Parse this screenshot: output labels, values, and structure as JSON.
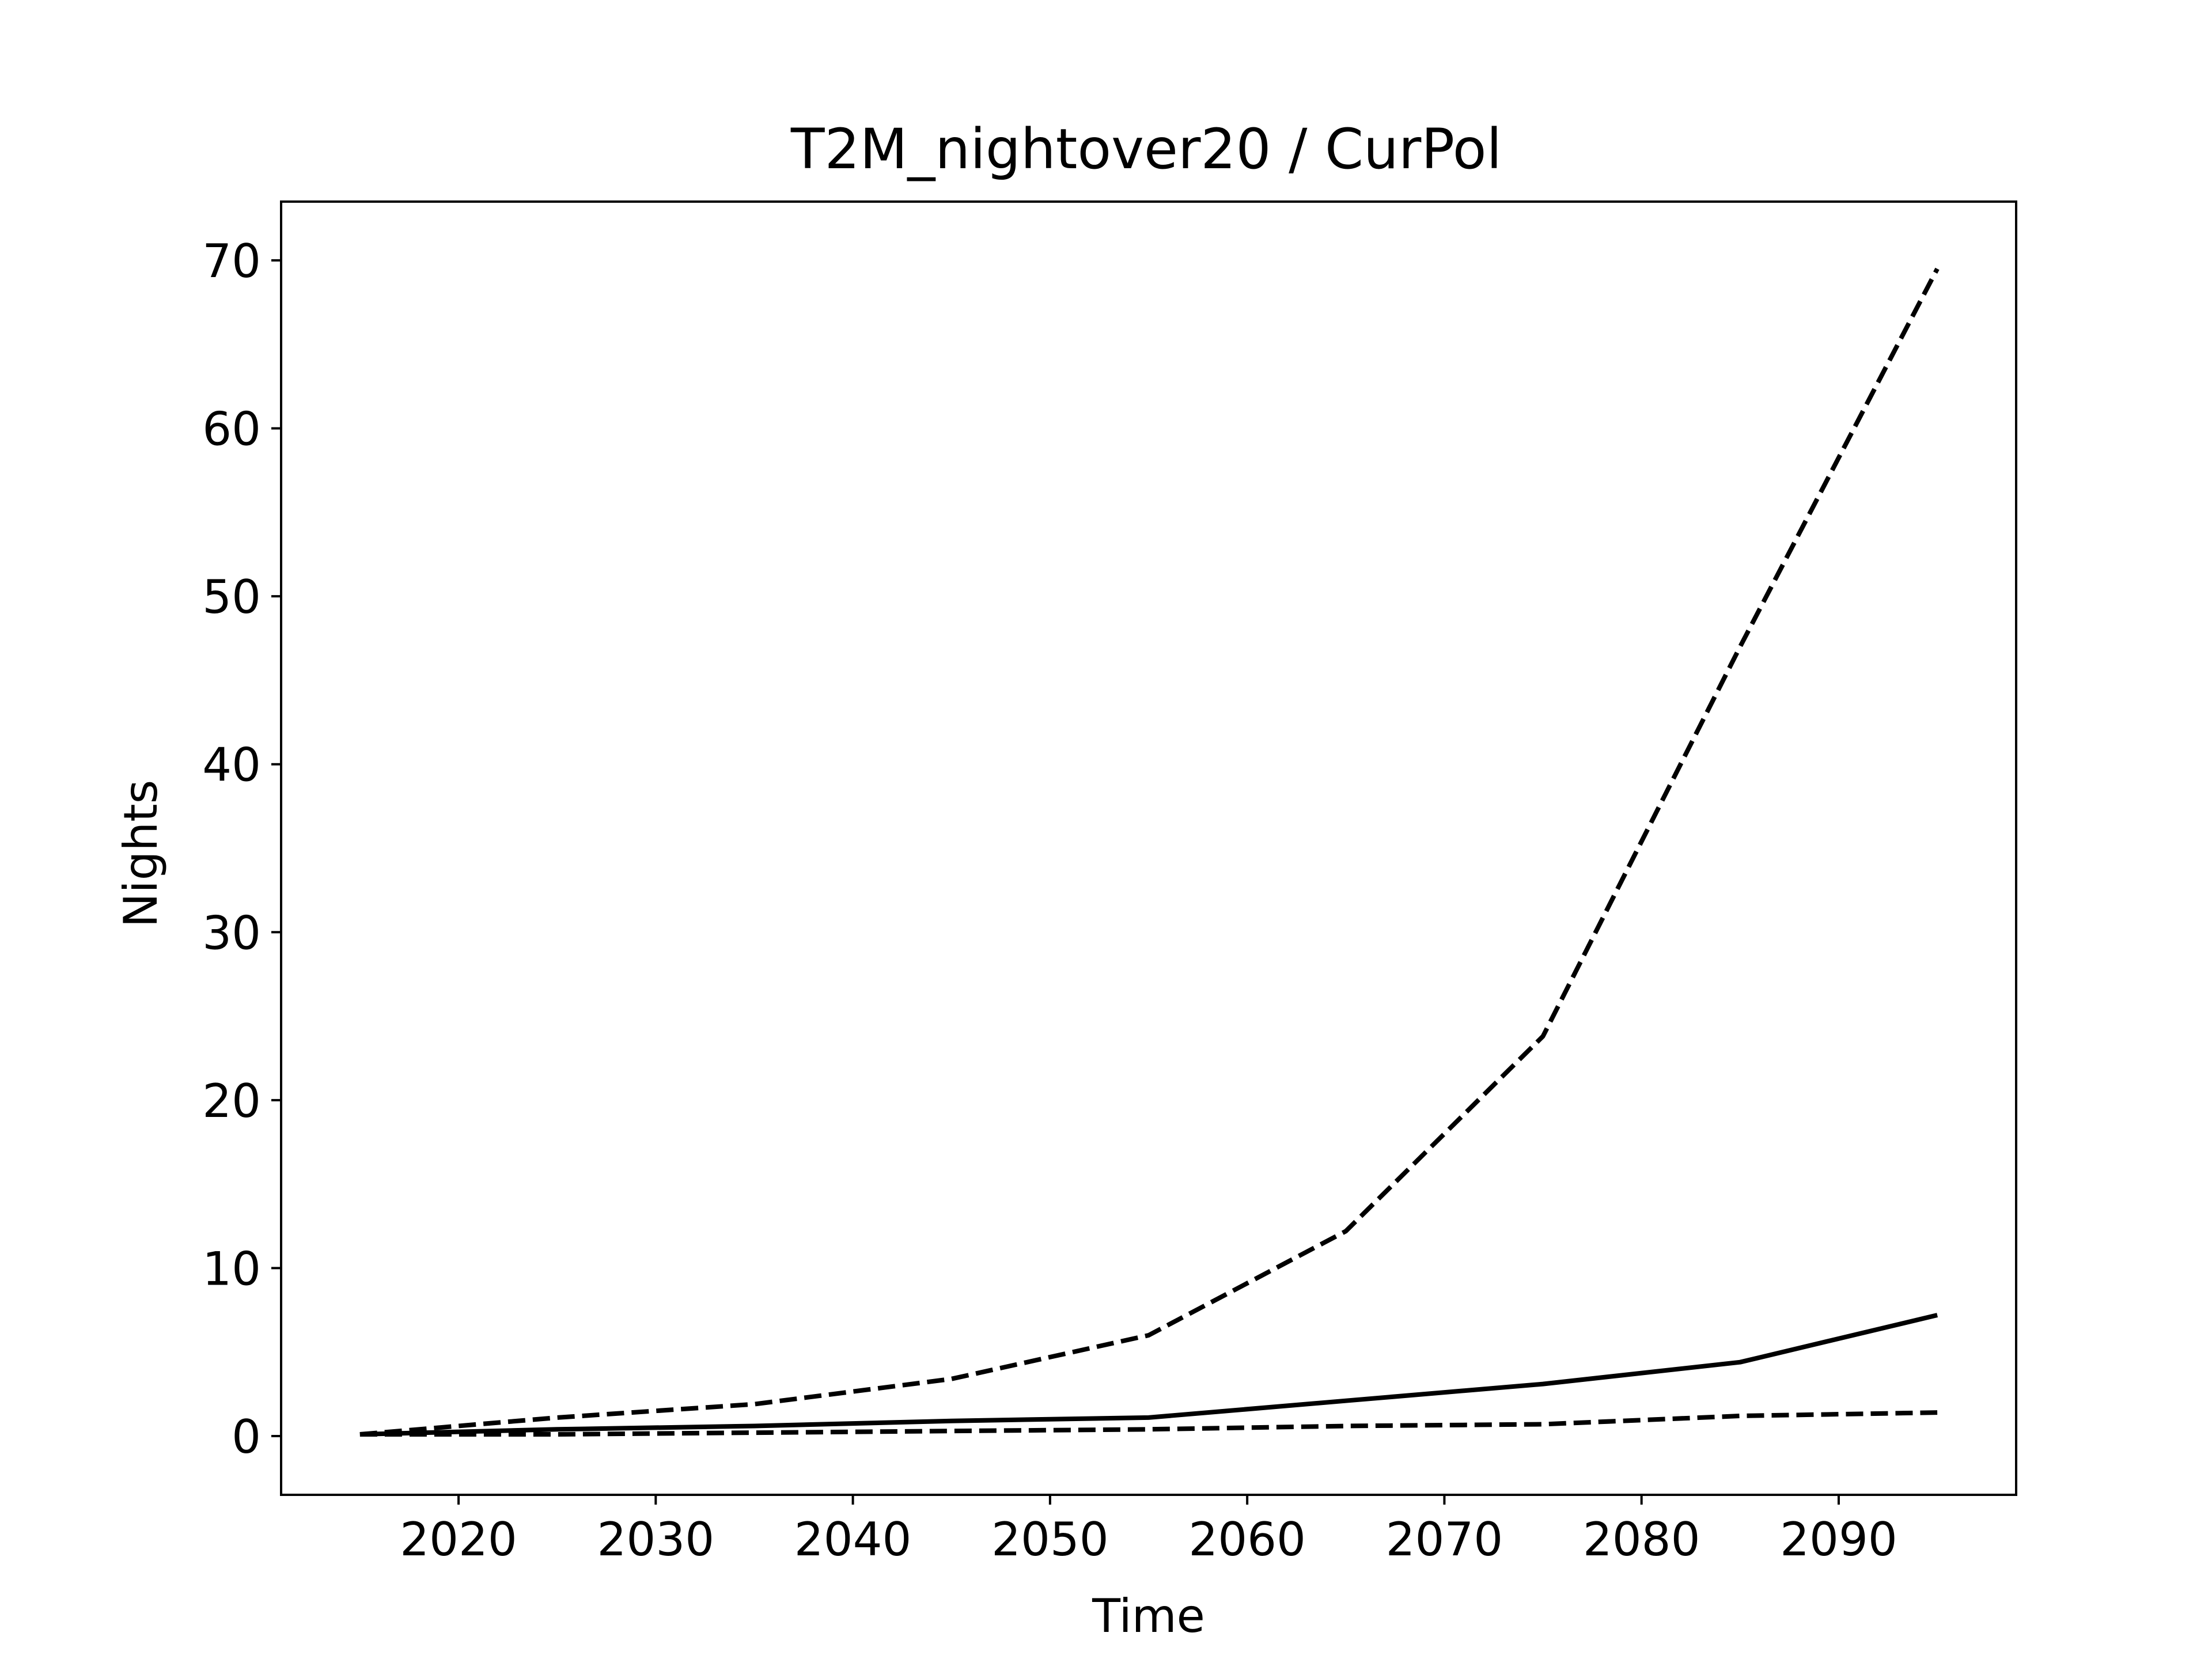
{
  "chart_data": {
    "type": "line",
    "title": "T2M_nightover20 / CurPol",
    "xlabel": "Time",
    "ylabel": "Nights",
    "xlim": [
      2011,
      2099
    ],
    "ylim": [
      -3.5,
      73.5
    ],
    "xticks": [
      2020,
      2030,
      2040,
      2050,
      2060,
      2070,
      2080,
      2090
    ],
    "yticks": [
      0,
      10,
      20,
      30,
      40,
      50,
      60,
      70
    ],
    "grid": false,
    "legend": null,
    "series": [
      {
        "style": "dashed",
        "color": "#000000",
        "x": [
          2015,
          2025,
          2035,
          2045,
          2055,
          2065,
          2075,
          2085,
          2095
        ],
        "values": [
          0.1,
          1.1,
          1.9,
          3.4,
          6.0,
          12.2,
          23.8,
          47.0,
          69.5
        ]
      },
      {
        "style": "solid",
        "color": "#000000",
        "x": [
          2015,
          2025,
          2035,
          2045,
          2055,
          2065,
          2075,
          2085,
          2095
        ],
        "values": [
          0.1,
          0.4,
          0.6,
          0.9,
          1.1,
          2.1,
          3.1,
          4.4,
          7.2
        ]
      },
      {
        "style": "dashed",
        "color": "#000000",
        "x": [
          2015,
          2025,
          2035,
          2045,
          2055,
          2065,
          2075,
          2085,
          2095
        ],
        "values": [
          0.1,
          0.1,
          0.2,
          0.3,
          0.4,
          0.6,
          0.7,
          1.2,
          1.4
        ]
      }
    ]
  }
}
